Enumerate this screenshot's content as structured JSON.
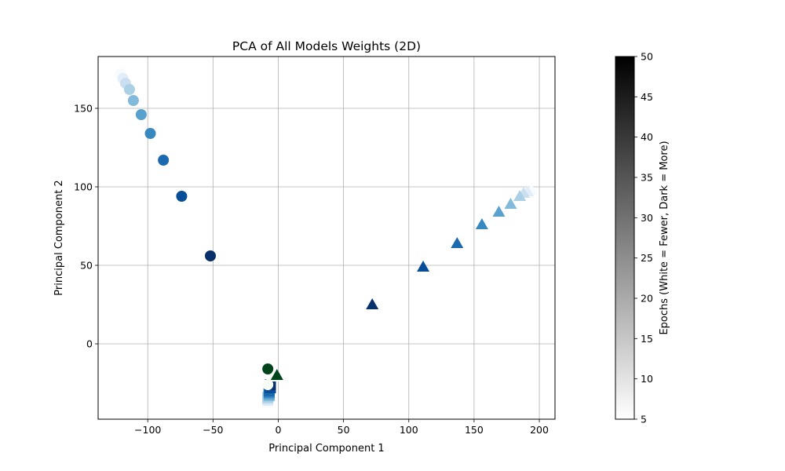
{
  "chart_data": {
    "type": "scatter",
    "title": "PCA of All Models Weights (2D)",
    "xlabel": "Principal Component 1",
    "ylabel": "Principal Component 2",
    "xlim": [
      -138,
      212
    ],
    "ylim": [
      -48,
      183
    ],
    "xticks": [
      -100,
      -50,
      0,
      50,
      100,
      150,
      200
    ],
    "yticks": [
      0,
      50,
      100,
      150
    ],
    "grid": true,
    "legend": "none",
    "colorbar": {
      "label": "Epochs (White = Fewer, Dark = More)",
      "range": [
        5,
        50
      ],
      "ticks": [
        5,
        10,
        15,
        20,
        25,
        30,
        35,
        40,
        45,
        50
      ],
      "colormap": "greys"
    },
    "series": [
      {
        "marker": "circle",
        "colormap": "blues",
        "points": [
          {
            "x": -121,
            "y": 172,
            "epoch": 5
          },
          {
            "x": -119,
            "y": 169,
            "epoch": 10
          },
          {
            "x": -117,
            "y": 166,
            "epoch": 15
          },
          {
            "x": -114,
            "y": 162,
            "epoch": 20
          },
          {
            "x": -111,
            "y": 155,
            "epoch": 25
          },
          {
            "x": -105,
            "y": 146,
            "epoch": 30
          },
          {
            "x": -98,
            "y": 134,
            "epoch": 35
          },
          {
            "x": -88,
            "y": 117,
            "epoch": 40
          },
          {
            "x": -74,
            "y": 94,
            "epoch": 45
          },
          {
            "x": -52,
            "y": 56,
            "epoch": 50
          }
        ]
      },
      {
        "marker": "triangle",
        "colormap": "blues",
        "points": [
          {
            "x": 194,
            "y": 98,
            "epoch": 5
          },
          {
            "x": 191,
            "y": 97,
            "epoch": 10
          },
          {
            "x": 188,
            "y": 96,
            "epoch": 15
          },
          {
            "x": 185,
            "y": 94,
            "epoch": 20
          },
          {
            "x": 178,
            "y": 89,
            "epoch": 25
          },
          {
            "x": 169,
            "y": 84,
            "epoch": 30
          },
          {
            "x": 156,
            "y": 76,
            "epoch": 35
          },
          {
            "x": 137,
            "y": 64,
            "epoch": 40
          },
          {
            "x": 111,
            "y": 49,
            "epoch": 45
          },
          {
            "x": 72,
            "y": 25,
            "epoch": 50
          }
        ]
      },
      {
        "marker": "square",
        "colormap": "blues",
        "points": [
          {
            "x": -8,
            "y": -37,
            "epoch": 5
          },
          {
            "x": -8,
            "y": -36,
            "epoch": 10
          },
          {
            "x": -8,
            "y": -35,
            "epoch": 15
          },
          {
            "x": -8,
            "y": -34,
            "epoch": 20
          },
          {
            "x": -7,
            "y": -33,
            "epoch": 25
          },
          {
            "x": -7,
            "y": -32,
            "epoch": 30
          },
          {
            "x": -7,
            "y": -31,
            "epoch": 35
          },
          {
            "x": -7,
            "y": -30,
            "epoch": 40
          },
          {
            "x": -6,
            "y": -28,
            "epoch": 45
          },
          {
            "x": -6,
            "y": -26,
            "epoch": 50
          }
        ]
      },
      {
        "marker": "circle",
        "colormap": "greens",
        "points": [
          {
            "x": -8,
            "y": -26,
            "epoch": 5
          },
          {
            "x": -8,
            "y": -16,
            "epoch": 50
          }
        ]
      },
      {
        "marker": "triangle",
        "colormap": "greens",
        "points": [
          {
            "x": -4,
            "y": -21,
            "epoch": 5
          },
          {
            "x": -1,
            "y": -20,
            "epoch": 50
          }
        ]
      }
    ]
  }
}
